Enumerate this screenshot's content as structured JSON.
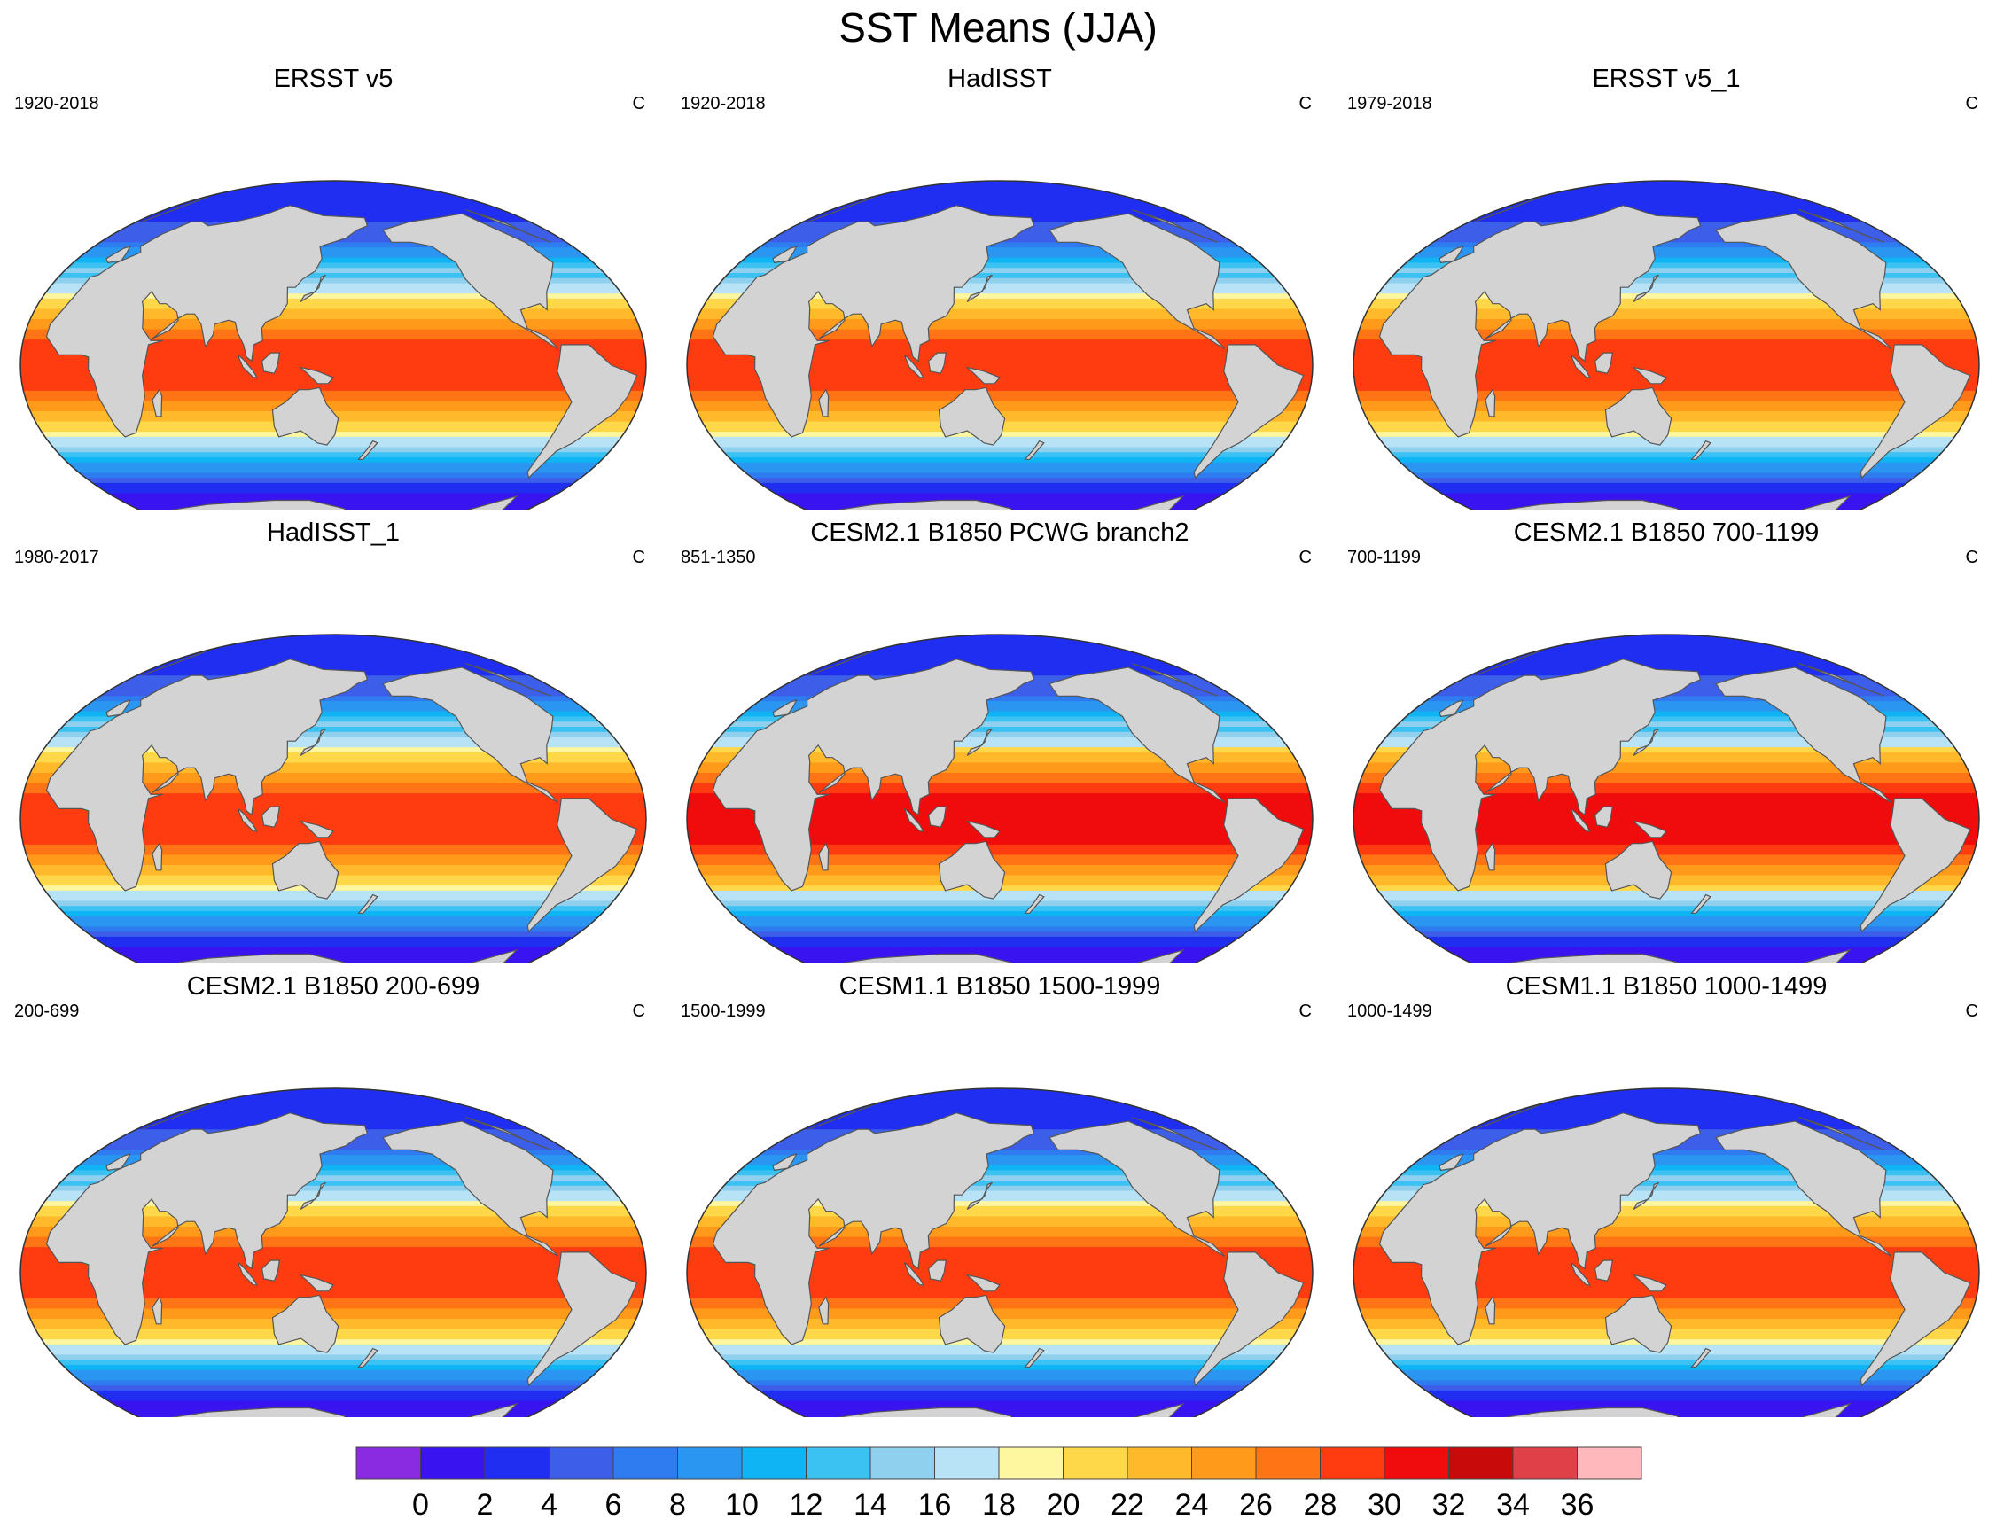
{
  "title": "SST Means (JJA)",
  "panels": [
    {
      "title": "ERSST v5",
      "years": "1920-2018",
      "units": "C",
      "warm_pool_peak": 30
    },
    {
      "title": "HadISST",
      "years": "1920-2018",
      "units": "C",
      "warm_pool_peak": 30
    },
    {
      "title": "ERSST v5_1",
      "years": "1979-2018",
      "units": "C",
      "warm_pool_peak": 30
    },
    {
      "title": "HadISST_1",
      "years": "1980-2017",
      "units": "C",
      "warm_pool_peak": 30
    },
    {
      "title": "CESM2.1 B1850 PCWG branch2",
      "years": "851-1350",
      "units": "C",
      "warm_pool_peak": 32
    },
    {
      "title": "CESM2.1 B1850 700-1199",
      "years": "700-1199",
      "units": "C",
      "warm_pool_peak": 32
    },
    {
      "title": "CESM2.1 B1850 200-699",
      "years": "200-699",
      "units": "C",
      "warm_pool_peak": 30
    },
    {
      "title": "CESM1.1 B1850 1500-1999",
      "years": "1500-1999",
      "units": "C",
      "warm_pool_peak": 30
    },
    {
      "title": "CESM1.1 B1850 1000-1499",
      "years": "1000-1499",
      "units": "C",
      "warm_pool_peak": 30
    }
  ],
  "colorbar": {
    "levels": [
      "0",
      "2",
      "4",
      "6",
      "8",
      "10",
      "12",
      "14",
      "16",
      "18",
      "20",
      "22",
      "24",
      "26",
      "28",
      "30",
      "32",
      "34",
      "36"
    ],
    "colors": [
      "#8a2be2",
      "#3a14f0",
      "#1f2ef0",
      "#3c5ee8",
      "#2f7cf0",
      "#2a96f2",
      "#0fb4f5",
      "#3cc2f2",
      "#8fd0ee",
      "#b8e2f5",
      "#fff6a0",
      "#ffd84a",
      "#ffb92a",
      "#ff9a1a",
      "#ff7414",
      "#ff3c10",
      "#f00c0c",
      "#c80a0a",
      "#e04048",
      "#ffb8bc"
    ]
  },
  "land_color": "#d3d3d3",
  "missing_color": "#ffffff"
}
